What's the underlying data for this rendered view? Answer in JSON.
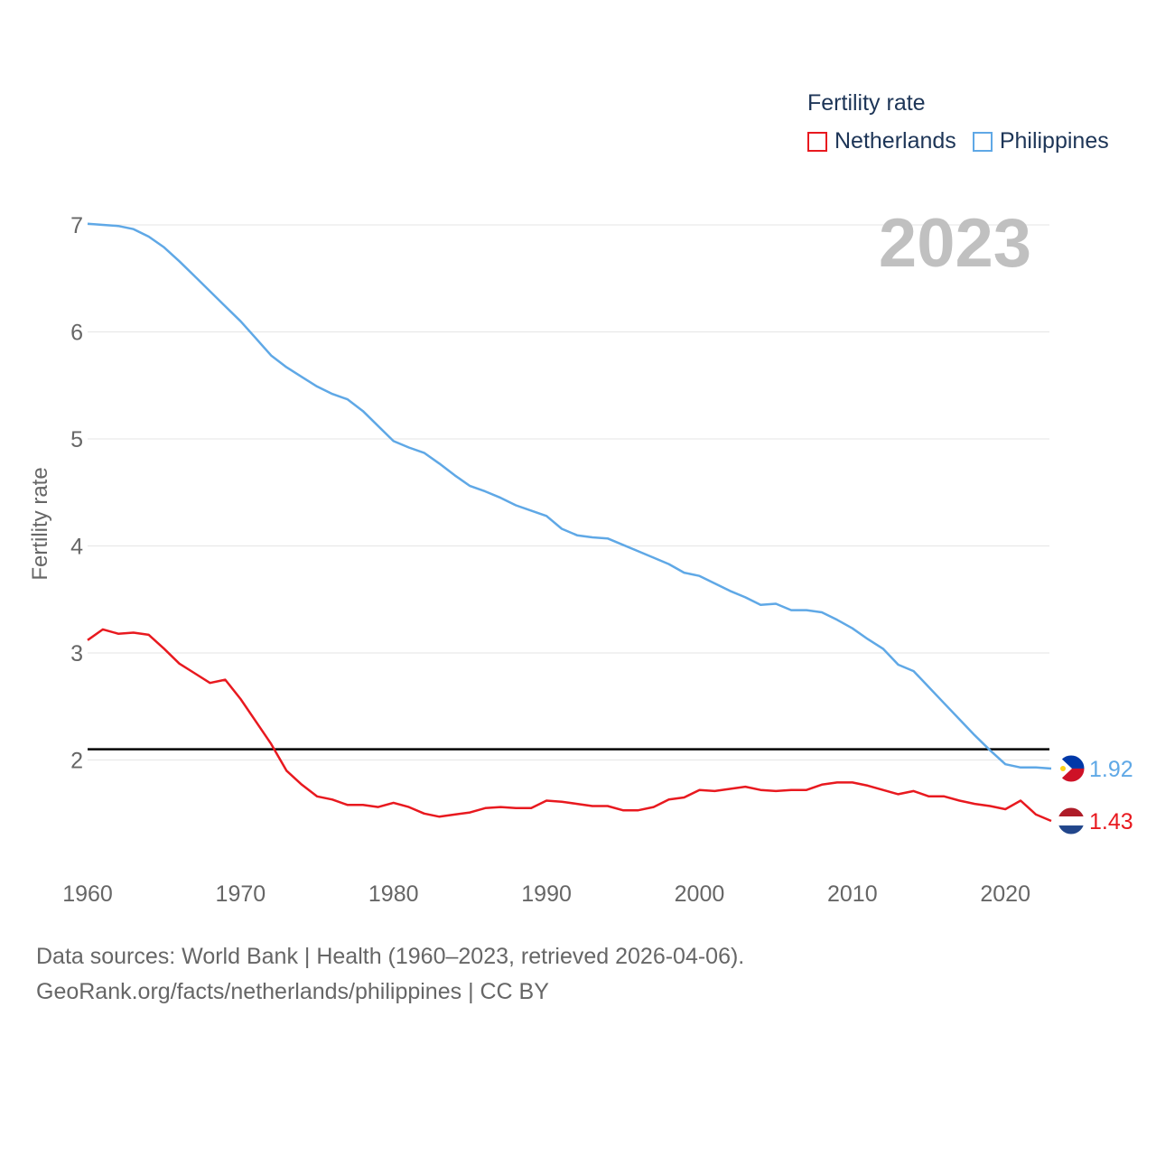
{
  "legend": {
    "title": "Fertility rate",
    "items": [
      "Netherlands",
      "Philippines"
    ]
  },
  "year_label": "2023",
  "footer": {
    "line1": "Data sources: World Bank | Health (1960–2023, retrieved 2026-04-06).",
    "line2": "GeoRank.org/facts/netherlands/philippines | CC BY"
  },
  "colors": {
    "netherlands": "#e8191f",
    "philippines": "#5fa8e6",
    "grid": "#e6e6e6",
    "axis_text": "#666666",
    "reference": "#000000"
  },
  "chart_data": {
    "type": "line",
    "title": "Fertility rate",
    "xlabel": "",
    "ylabel": "Fertility rate",
    "xlim": [
      1960,
      2023
    ],
    "ylim": [
      1,
      7
    ],
    "x_ticks": [
      1960,
      1970,
      1980,
      1990,
      2000,
      2010,
      2020
    ],
    "y_ticks": [
      2,
      3,
      4,
      5,
      6,
      7
    ],
    "reference_line": {
      "y": 2.1
    },
    "x": [
      1960,
      1961,
      1962,
      1963,
      1964,
      1965,
      1966,
      1967,
      1968,
      1969,
      1970,
      1971,
      1972,
      1973,
      1974,
      1975,
      1976,
      1977,
      1978,
      1979,
      1980,
      1981,
      1982,
      1983,
      1984,
      1985,
      1986,
      1987,
      1988,
      1989,
      1990,
      1991,
      1992,
      1993,
      1994,
      1995,
      1996,
      1997,
      1998,
      1999,
      2000,
      2001,
      2002,
      2003,
      2004,
      2005,
      2006,
      2007,
      2008,
      2009,
      2010,
      2011,
      2012,
      2013,
      2014,
      2015,
      2016,
      2017,
      2018,
      2019,
      2020,
      2021,
      2022,
      2023
    ],
    "series": [
      {
        "name": "Netherlands",
        "color": "#e8191f",
        "end_label": "1.43",
        "values": [
          3.12,
          3.22,
          3.18,
          3.19,
          3.17,
          3.04,
          2.9,
          2.81,
          2.72,
          2.75,
          2.57,
          2.36,
          2.15,
          1.9,
          1.77,
          1.66,
          1.63,
          1.58,
          1.58,
          1.56,
          1.6,
          1.56,
          1.5,
          1.47,
          1.49,
          1.51,
          1.55,
          1.56,
          1.55,
          1.55,
          1.62,
          1.61,
          1.59,
          1.57,
          1.57,
          1.53,
          1.53,
          1.56,
          1.63,
          1.65,
          1.72,
          1.71,
          1.73,
          1.75,
          1.72,
          1.71,
          1.72,
          1.72,
          1.77,
          1.79,
          1.79,
          1.76,
          1.72,
          1.68,
          1.71,
          1.66,
          1.66,
          1.62,
          1.59,
          1.57,
          1.54,
          1.62,
          1.49,
          1.43
        ]
      },
      {
        "name": "Philippines",
        "color": "#5fa8e6",
        "end_label": "1.92",
        "values": [
          7.01,
          7.0,
          6.99,
          6.96,
          6.89,
          6.79,
          6.66,
          6.52,
          6.38,
          6.24,
          6.1,
          5.94,
          5.78,
          5.67,
          5.58,
          5.49,
          5.42,
          5.37,
          5.26,
          5.12,
          4.98,
          4.92,
          4.87,
          4.77,
          4.66,
          4.56,
          4.51,
          4.45,
          4.38,
          4.33,
          4.28,
          4.16,
          4.1,
          4.08,
          4.07,
          4.01,
          3.95,
          3.89,
          3.83,
          3.75,
          3.72,
          3.65,
          3.58,
          3.52,
          3.45,
          3.46,
          3.4,
          3.4,
          3.38,
          3.31,
          3.23,
          3.13,
          3.04,
          2.89,
          2.83,
          2.68,
          2.53,
          2.38,
          2.23,
          2.09,
          1.96,
          1.93,
          1.93,
          1.92
        ]
      }
    ]
  }
}
